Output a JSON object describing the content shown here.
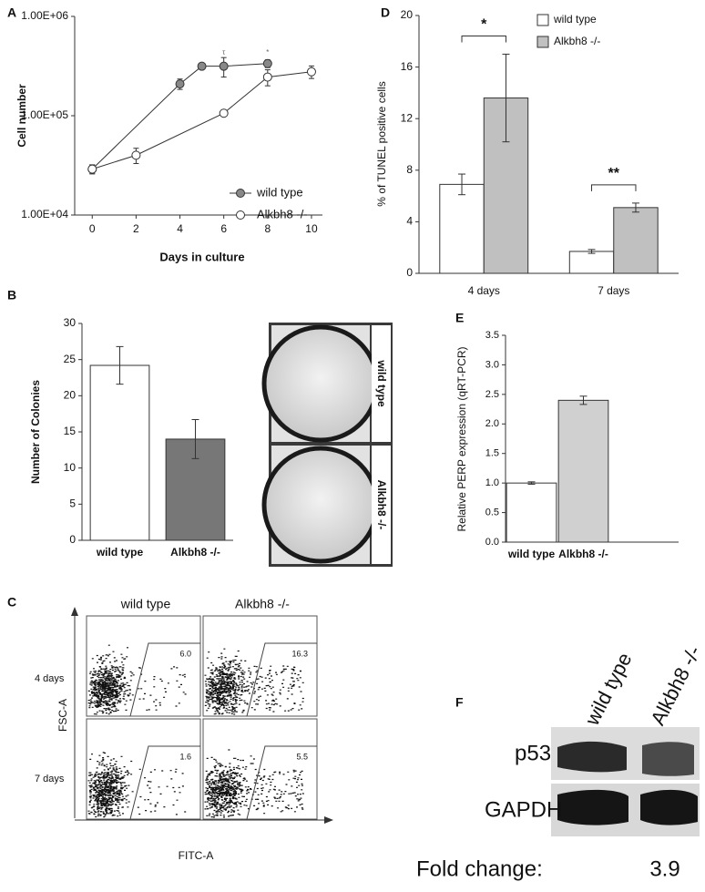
{
  "chart_data": [
    {
      "type": "line",
      "panel": "A",
      "y_label": "Cell number",
      "x_label": "Days in culture",
      "log_scale": true,
      "xlim": [
        -0.8,
        10.5
      ],
      "xticks": [
        0,
        2,
        4,
        6,
        8,
        10
      ],
      "ylim": [
        10000,
        1000000
      ],
      "yticks": [
        {
          "value": 10000,
          "label": "1.00E+04"
        },
        {
          "value": 100000,
          "label": "1.00E+05"
        },
        {
          "value": 1000000,
          "label": "1.00E+06"
        }
      ],
      "series": [
        {
          "name": "wild type",
          "color": "#888888",
          "x": [
            0,
            4,
            5,
            6,
            8
          ],
          "values": [
            29000,
            209000,
            315000,
            315000,
            335000
          ],
          "errors": [
            3000,
            25000,
            20000,
            70000,
            30000
          ]
        },
        {
          "name": "Alkbh8 -/-",
          "color": "#ffffff",
          "x": [
            0,
            2,
            6,
            8,
            10
          ],
          "values": [
            29000,
            40000,
            106000,
            245000,
            277000
          ],
          "errors": [
            3000,
            7000,
            5000,
            45000,
            40000
          ]
        }
      ],
      "annotations": [
        {
          "text": "τ",
          "x": 6
        },
        {
          "text": "*",
          "x": 8
        }
      ],
      "legend": "lower right"
    },
    {
      "type": "bar",
      "panel": "B",
      "y_label": "Number of Colonies",
      "categories": [
        "wild type",
        "Alkbh8 -/-"
      ],
      "values": [
        24.2,
        14
      ],
      "errors": [
        2.6,
        2.7
      ],
      "colors": [
        "#ffffff",
        "#777777"
      ],
      "ylim": [
        0,
        30
      ],
      "yticks": [
        0,
        5,
        10,
        15,
        20,
        25,
        30
      ]
    },
    {
      "type": "bar",
      "panel": "D",
      "y_label": "% of TUNEL positive cells",
      "categories": [
        "4 days",
        "7 days"
      ],
      "series": [
        {
          "name": "wild type",
          "color": "#ffffff",
          "values": [
            6.9,
            1.7
          ],
          "errors": [
            0.8,
            0.15
          ]
        },
        {
          "name": "Alkbh8 -/-",
          "color": "#c0c0c0",
          "values": [
            13.6,
            5.1
          ],
          "errors": [
            3.4,
            0.35
          ]
        }
      ],
      "ylim": [
        0,
        20
      ],
      "yticks": [
        0,
        4,
        8,
        12,
        16,
        20
      ],
      "annotations": [
        {
          "text": "*",
          "category": 0
        },
        {
          "text": "**",
          "category": 1
        }
      ],
      "legend": "upper right"
    },
    {
      "type": "bar",
      "panel": "E",
      "y_label": "Relative PERP expression (qRT-PCR)",
      "categories": [
        "wild type",
        "Alkbh8 -/-"
      ],
      "values": [
        1.0,
        2.4
      ],
      "errors": [
        0.02,
        0.07
      ],
      "colors": [
        "#ffffff",
        "#d0d0d0"
      ],
      "ylim": [
        0,
        3.5
      ],
      "yticks": [
        {
          "value": 0,
          "label": "0.0"
        },
        0.5,
        {
          "value": 1,
          "label": "1.0"
        },
        1.5,
        {
          "value": 2,
          "label": "2.0"
        },
        2.5,
        {
          "value": 3,
          "label": "3.0"
        },
        3.5
      ]
    }
  ],
  "plate_image": {
    "labels": [
      "wild type",
      "Alkbh8 -/-"
    ]
  },
  "flow_cytometry": {
    "panel": "C",
    "columns": [
      "wild type",
      "Alkbh8 -/-"
    ],
    "rows": [
      "4 days",
      "7 days"
    ],
    "gates": [
      [
        "6.0",
        "16.3"
      ],
      [
        "1.6",
        "5.5"
      ]
    ],
    "y_label": "FSC-A",
    "x_label": "FITC-A"
  },
  "western_blot": {
    "panel": "F",
    "lanes": [
      "wild type",
      "Alkbh8 -/-"
    ],
    "bands": [
      "p53",
      "GAPDH"
    ],
    "fold_change_label": "Fold change:",
    "fold_change": "3.9"
  }
}
